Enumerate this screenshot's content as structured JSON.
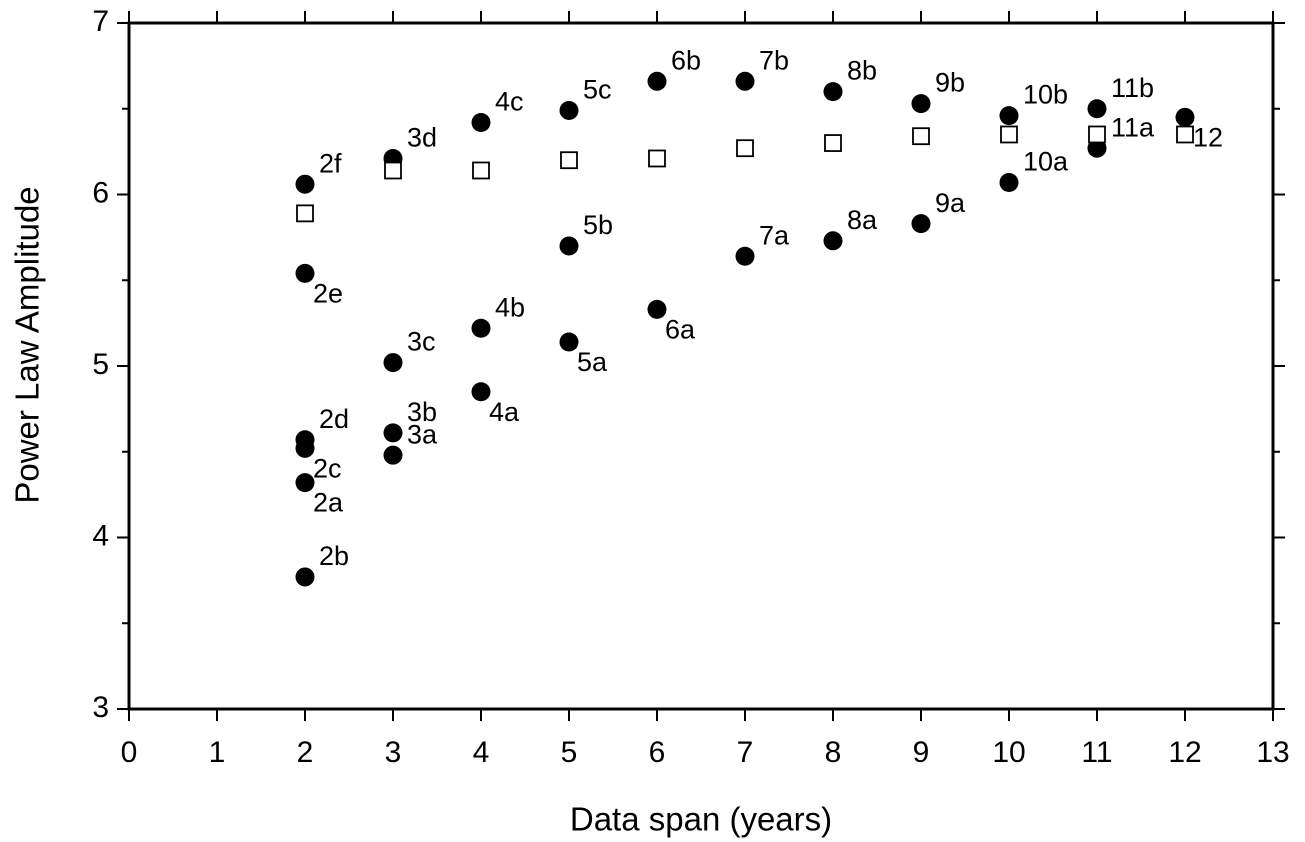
{
  "chart_data": {
    "type": "scatter",
    "xlabel": "Data span (years)",
    "ylabel": "Power Law Amplitude",
    "xlim": [
      0,
      13
    ],
    "xticks": [
      0,
      1,
      2,
      3,
      4,
      5,
      6,
      7,
      8,
      9,
      10,
      11,
      12,
      13
    ],
    "ylim": [
      3,
      7
    ],
    "yticks": [
      3,
      4,
      5,
      6,
      7
    ],
    "grid": false,
    "series": [
      {
        "marker": "filled-circle",
        "color": "#000000",
        "x": [
          2,
          2,
          2,
          2,
          2,
          2,
          3,
          3,
          3,
          3,
          4,
          4,
          4,
          5,
          5,
          5,
          6,
          6,
          7,
          7,
          8,
          8,
          9,
          9,
          10,
          10,
          11,
          11,
          12
        ],
        "values": [
          6.06,
          5.54,
          4.57,
          4.52,
          4.32,
          3.77,
          6.21,
          5.02,
          4.61,
          4.48,
          6.42,
          5.22,
          4.85,
          6.49,
          5.7,
          5.14,
          6.66,
          5.33,
          6.66,
          5.64,
          6.6,
          5.73,
          6.53,
          5.83,
          6.46,
          6.07,
          6.5,
          6.27,
          6.45
        ],
        "labels": [
          "2f",
          "2e",
          "2d",
          "2c",
          "2a",
          "2b",
          "3d",
          "3c",
          "3b",
          "3a",
          "4c",
          "4b",
          "4a",
          "5c",
          "5b",
          "5a",
          "6b",
          "6a",
          "7b",
          "7a",
          "8b",
          "8a",
          "9b",
          "9a",
          "10b",
          "10a",
          "11b",
          "11a",
          "12"
        ]
      },
      {
        "marker": "open-square",
        "color": "#000000",
        "x": [
          2,
          3,
          4,
          5,
          6,
          7,
          8,
          9,
          10,
          11,
          12
        ],
        "values": [
          5.89,
          6.14,
          6.14,
          6.2,
          6.21,
          6.27,
          6.3,
          6.34,
          6.35,
          6.35,
          6.35
        ]
      }
    ]
  }
}
